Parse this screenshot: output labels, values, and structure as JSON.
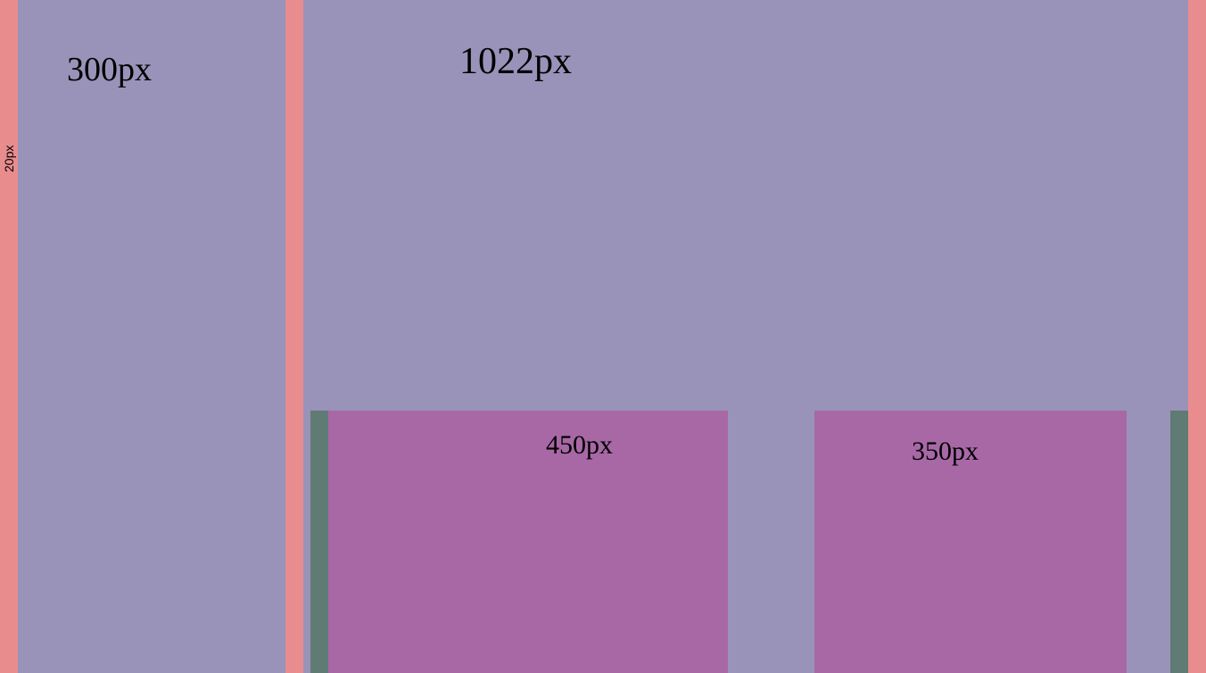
{
  "labels": {
    "gutter": "20px",
    "sidebar": "300px",
    "main": "1022px",
    "left_box": "450px",
    "right_box": "350px"
  },
  "colors": {
    "gutter": "#E98C8E",
    "panel": "#9993B9",
    "box": "#A868A6",
    "bar": "#607A74",
    "text": "#000000"
  }
}
